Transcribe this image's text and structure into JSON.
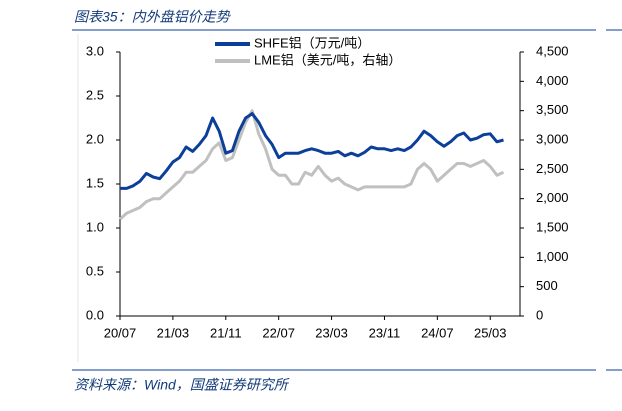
{
  "header": {
    "title": "图表35：内外盘铝价走势"
  },
  "chart_data": {
    "type": "line",
    "x": [
      "20/07",
      "20/08",
      "20/09",
      "20/10",
      "20/11",
      "20/12",
      "21/01",
      "21/02",
      "21/03",
      "21/04",
      "21/05",
      "21/06",
      "21/07",
      "21/08",
      "21/09",
      "21/10",
      "21/11",
      "21/12",
      "22/01",
      "22/02",
      "22/03",
      "22/04",
      "22/05",
      "22/06",
      "22/07",
      "22/08",
      "22/09",
      "22/10",
      "22/11",
      "22/12",
      "23/01",
      "23/02",
      "23/03",
      "23/04",
      "23/05",
      "23/06",
      "23/07",
      "23/08",
      "23/09",
      "23/10",
      "23/11",
      "23/12",
      "24/01",
      "24/02",
      "24/03",
      "24/04",
      "24/05",
      "24/06",
      "24/07",
      "24/08",
      "24/09",
      "24/10",
      "24/11",
      "24/12",
      "25/01",
      "25/02",
      "25/03",
      "25/04",
      "25/05"
    ],
    "xticks": [
      "20/07",
      "21/03",
      "21/11",
      "22/07",
      "23/03",
      "23/11",
      "24/07",
      "25/03"
    ],
    "series": [
      {
        "name": "SHFE铝（万元/吨）",
        "color": "#0b3f9a",
        "values": [
          1.45,
          1.45,
          1.48,
          1.53,
          1.62,
          1.58,
          1.56,
          1.65,
          1.75,
          1.8,
          1.92,
          1.87,
          1.95,
          2.05,
          2.25,
          2.1,
          1.85,
          1.88,
          2.1,
          2.25,
          2.3,
          2.2,
          2.05,
          1.95,
          1.8,
          1.85,
          1.85,
          1.85,
          1.88,
          1.9,
          1.88,
          1.85,
          1.85,
          1.87,
          1.82,
          1.85,
          1.82,
          1.86,
          1.92,
          1.9,
          1.9,
          1.88,
          1.9,
          1.88,
          1.92,
          2.0,
          2.1,
          2.05,
          1.98,
          1.93,
          1.98,
          2.05,
          2.08,
          2.0,
          2.02,
          2.06,
          2.07,
          1.98,
          2.0
        ]
      },
      {
        "name": "LME铝（美元/吨，右轴）",
        "color": "#c0c0c0",
        "axis": "y2",
        "values": [
          1650,
          1750,
          1800,
          1850,
          1950,
          2000,
          2000,
          2100,
          2200,
          2300,
          2450,
          2450,
          2550,
          2650,
          2850,
          2950,
          2650,
          2700,
          3000,
          3300,
          3500,
          3100,
          2850,
          2500,
          2400,
          2400,
          2250,
          2250,
          2450,
          2400,
          2550,
          2400,
          2300,
          2350,
          2250,
          2200,
          2150,
          2200,
          2200,
          2200,
          2200,
          2200,
          2200,
          2200,
          2250,
          2500,
          2600,
          2500,
          2300,
          2400,
          2500,
          2600,
          2600,
          2550,
          2600,
          2650,
          2550,
          2400,
          2450
        ]
      }
    ],
    "ylim": [
      0,
      3.0
    ],
    "yticks": [
      {
        "value": 0,
        "label": "0.0"
      },
      {
        "value": 0.5,
        "label": "0.5"
      },
      {
        "value": 1,
        "label": "1.0"
      },
      {
        "value": 1.5,
        "label": "1.5"
      },
      {
        "value": 2,
        "label": "2.0"
      },
      {
        "value": 2.5,
        "label": "2.5"
      },
      {
        "value": 3,
        "label": "3.0"
      }
    ],
    "y2lim": [
      0,
      4500
    ],
    "y2ticks": [
      0,
      500,
      {
        "value": 1000,
        "label": "1,000"
      },
      {
        "value": 1500,
        "label": "1,500"
      },
      {
        "value": 2000,
        "label": "2,000"
      },
      {
        "value": 2500,
        "label": "2,500"
      },
      {
        "value": 3000,
        "label": "3,000"
      },
      {
        "value": 3500,
        "label": "3,500"
      },
      {
        "value": 4000,
        "label": "4,000"
      },
      {
        "value": 4500,
        "label": "4,500"
      }
    ],
    "legend": "top"
  },
  "footer": {
    "source": "资料来源：Wind，国盛证券研究所"
  }
}
